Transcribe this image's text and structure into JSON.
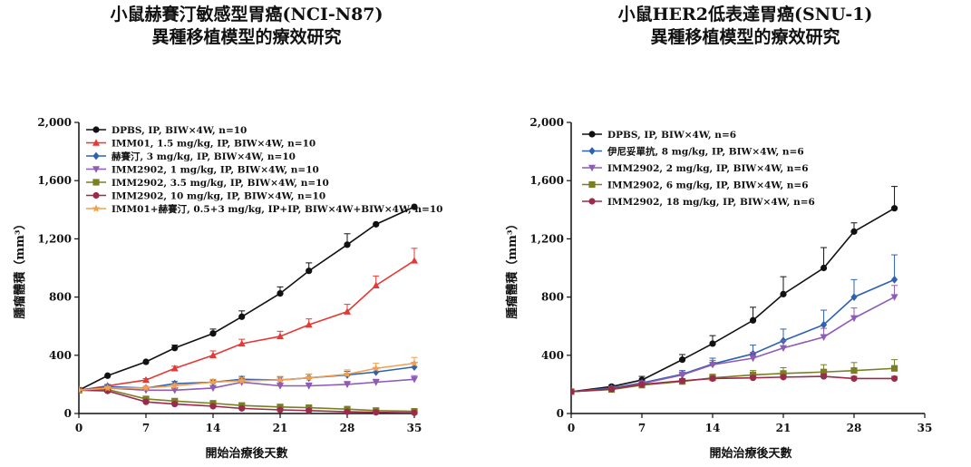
{
  "chart_data": [
    {
      "type": "line",
      "title": "小鼠赫賽汀敏感型胃癌(NCI-N87)",
      "subtitle": "異種移植模型的療效研究",
      "xlabel": "開始治療後天數",
      "ylabel": "腫瘤體積（mm³）",
      "xlim": [
        0,
        35
      ],
      "ylim": [
        0,
        2000
      ],
      "xticks": [
        "0",
        "7",
        "14",
        "21",
        "28",
        "35"
      ],
      "yticks": [
        "0",
        "400",
        "800",
        "1,200",
        "1,600",
        "2,000"
      ],
      "legend_position": "top-left",
      "series": [
        {
          "name": "DPBS, IP, BIW×4W, n=10",
          "color": "#111111",
          "marker": "circle",
          "x": [
            0,
            3,
            7,
            10,
            14,
            17,
            21,
            24,
            28,
            31,
            35
          ],
          "y": [
            160,
            260,
            355,
            450,
            550,
            665,
            825,
            980,
            1160,
            1300,
            1420
          ],
          "err": [
            0,
            0,
            0,
            20,
            30,
            40,
            45,
            55,
            75,
            0,
            0
          ]
        },
        {
          "name": "IMM01, 1.5 mg/kg, IP, BIW×4W, n=10",
          "color": "#e53935",
          "marker": "triangle-up",
          "x": [
            0,
            3,
            7,
            10,
            14,
            17,
            21,
            24,
            28,
            31,
            35
          ],
          "y": [
            160,
            190,
            230,
            310,
            400,
            480,
            530,
            610,
            700,
            880,
            1050
          ],
          "err": [
            0,
            10,
            10,
            15,
            30,
            30,
            35,
            40,
            50,
            65,
            85
          ]
        },
        {
          "name": "赫賽汀, 3 mg/kg, IP, BIW×4W, n=10",
          "color": "#2e62b0",
          "marker": "diamond",
          "x": [
            0,
            3,
            7,
            10,
            14,
            17,
            21,
            24,
            28,
            31,
            35
          ],
          "y": [
            160,
            185,
            175,
            205,
            215,
            235,
            230,
            245,
            265,
            285,
            320
          ],
          "err": [
            0,
            10,
            10,
            15,
            15,
            20,
            20,
            25,
            25,
            25,
            30
          ]
        },
        {
          "name": "IMM2902, 1 mg/kg, IP, BIW×4W, n=10",
          "color": "#8e5bb5",
          "marker": "triangle-down",
          "x": [
            0,
            3,
            7,
            10,
            14,
            17,
            21,
            24,
            28,
            31,
            35
          ],
          "y": [
            160,
            175,
            160,
            160,
            175,
            215,
            190,
            190,
            200,
            215,
            235
          ],
          "err": [
            0,
            10,
            10,
            10,
            15,
            20,
            20,
            20,
            20,
            20,
            25
          ]
        },
        {
          "name": "IMM2902, 3.5 mg/kg, IP, BIW×4W, n=10",
          "color": "#7a7f22",
          "marker": "square",
          "x": [
            0,
            3,
            7,
            10,
            14,
            17,
            21,
            24,
            28,
            31,
            35
          ],
          "y": [
            160,
            165,
            100,
            85,
            70,
            55,
            45,
            40,
            30,
            20,
            15
          ],
          "err": [
            0,
            10,
            10,
            10,
            10,
            8,
            8,
            8,
            6,
            6,
            5
          ]
        },
        {
          "name": "IMM2902, 10 mg/kg, IP, BIW×4W, n=10",
          "color": "#9c2a4a",
          "marker": "circle",
          "x": [
            0,
            3,
            7,
            10,
            14,
            17,
            21,
            24,
            28,
            31,
            35
          ],
          "y": [
            160,
            155,
            80,
            65,
            50,
            35,
            25,
            20,
            12,
            8,
            5
          ],
          "err": [
            0,
            10,
            8,
            8,
            6,
            5,
            5,
            4,
            3,
            3,
            2
          ]
        },
        {
          "name": "IMM01+赫賽汀, 0.5+3 mg/kg, IP+IP, BIW×4W+BIW×4W, n=10",
          "color": "#f0a050",
          "marker": "star",
          "x": [
            0,
            3,
            7,
            10,
            14,
            17,
            21,
            24,
            28,
            31,
            35
          ],
          "y": [
            160,
            175,
            175,
            190,
            215,
            225,
            230,
            245,
            270,
            310,
            345
          ],
          "err": [
            0,
            10,
            10,
            15,
            20,
            20,
            25,
            25,
            30,
            35,
            40
          ]
        }
      ]
    },
    {
      "type": "line",
      "title": "小鼠HER2低表達胃癌(SNU-1)",
      "subtitle": "異種移植模型的療效研究",
      "xlabel": "開始治療後天數",
      "ylabel": "腫瘤體積（mm³）",
      "xlim": [
        0,
        35
      ],
      "ylim": [
        0,
        2000
      ],
      "xticks": [
        "0",
        "7",
        "14",
        "21",
        "28",
        "35"
      ],
      "yticks": [
        "0",
        "400",
        "800",
        "1,200",
        "1,600",
        "2,000"
      ],
      "legend_position": "top-left",
      "series": [
        {
          "name": "DPBS, IP, BIW×4W, n=6",
          "color": "#111111",
          "marker": "circle",
          "x": [
            0,
            4,
            7,
            11,
            14,
            18,
            21,
            25,
            28,
            32
          ],
          "y": [
            150,
            185,
            230,
            370,
            480,
            640,
            820,
            1000,
            1250,
            1410
          ],
          "err": [
            0,
            10,
            25,
            35,
            55,
            90,
            120,
            140,
            60,
            150
          ]
        },
        {
          "name": "伊尼妥單抗, 8 mg/kg, IP, BIW×4W, n=6",
          "color": "#2e62b0",
          "marker": "diamond",
          "x": [
            0,
            4,
            7,
            11,
            14,
            18,
            21,
            25,
            28,
            32
          ],
          "y": [
            150,
            175,
            210,
            270,
            340,
            410,
            500,
            610,
            800,
            920
          ],
          "err": [
            0,
            10,
            15,
            25,
            40,
            60,
            80,
            100,
            120,
            170
          ]
        },
        {
          "name": "IMM2902, 2 mg/kg, IP, BIW×4W, n=6",
          "color": "#8e5bb5",
          "marker": "triangle-down",
          "x": [
            0,
            4,
            7,
            11,
            14,
            18,
            21,
            25,
            28,
            32
          ],
          "y": [
            150,
            170,
            205,
            265,
            335,
            380,
            450,
            525,
            655,
            800
          ],
          "err": [
            0,
            10,
            15,
            20,
            30,
            40,
            50,
            60,
            70,
            80
          ]
        },
        {
          "name": "IMM2902, 6 mg/kg, IP, BIW×4W, n=6",
          "color": "#7a7f22",
          "marker": "square",
          "x": [
            0,
            4,
            7,
            11,
            14,
            18,
            21,
            25,
            28,
            32
          ],
          "y": [
            150,
            165,
            195,
            220,
            245,
            265,
            275,
            285,
            295,
            310
          ],
          "err": [
            0,
            10,
            15,
            20,
            25,
            30,
            40,
            50,
            55,
            60
          ]
        },
        {
          "name": "IMM2902, 18 mg/kg, IP, BIW×4W, n=6",
          "color": "#9c2a4a",
          "marker": "circle",
          "x": [
            0,
            4,
            7,
            11,
            14,
            18,
            21,
            25,
            28,
            32
          ],
          "y": [
            150,
            168,
            200,
            225,
            240,
            245,
            250,
            255,
            240,
            240
          ],
          "err": [
            0,
            8,
            10,
            12,
            14,
            14,
            15,
            15,
            15,
            15
          ]
        }
      ]
    }
  ]
}
